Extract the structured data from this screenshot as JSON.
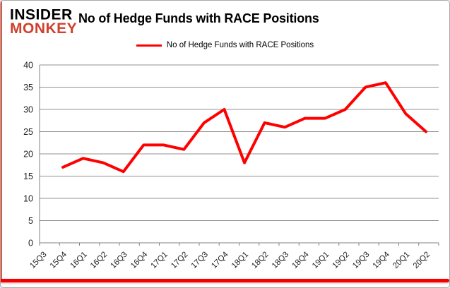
{
  "logo": {
    "line1": "INSIDER",
    "line2": "MONKEY"
  },
  "header": {
    "title": "No of Hedge Funds with RACE Positions"
  },
  "legend": {
    "label": "No of Hedge Funds with RACE Positions"
  },
  "colors": {
    "line": "#ff0000",
    "logo_red": "#d0402e",
    "grid": "#909090",
    "axis": "#808080",
    "tick_text": "#1f1f1f",
    "bottom_bar": "#f40000"
  },
  "chart_data": {
    "type": "line",
    "title": "No of Hedge Funds with RACE Positions",
    "categories": [
      "15Q3",
      "15Q4",
      "16Q1",
      "16Q2",
      "16Q3",
      "16Q4",
      "17Q1",
      "17Q2",
      "17Q3",
      "17Q4",
      "18Q1",
      "18Q2",
      "18Q3",
      "18Q4",
      "19Q1",
      "19Q2",
      "19Q3",
      "19Q4",
      "20Q1",
      "20Q2"
    ],
    "series": [
      {
        "name": "No of Hedge Funds with RACE Positions",
        "color": "#ff0000",
        "values": [
          null,
          17,
          19,
          18,
          16,
          22,
          22,
          21,
          27,
          30,
          18,
          27,
          26,
          28,
          28,
          30,
          35,
          36,
          29,
          25
        ]
      }
    ],
    "xlabel": "",
    "ylabel": "",
    "ylim": [
      0,
      40
    ],
    "yticks": [
      0,
      5,
      10,
      15,
      20,
      25,
      30,
      35,
      40
    ],
    "grid": "horizontal",
    "legend_position": "top-center"
  }
}
